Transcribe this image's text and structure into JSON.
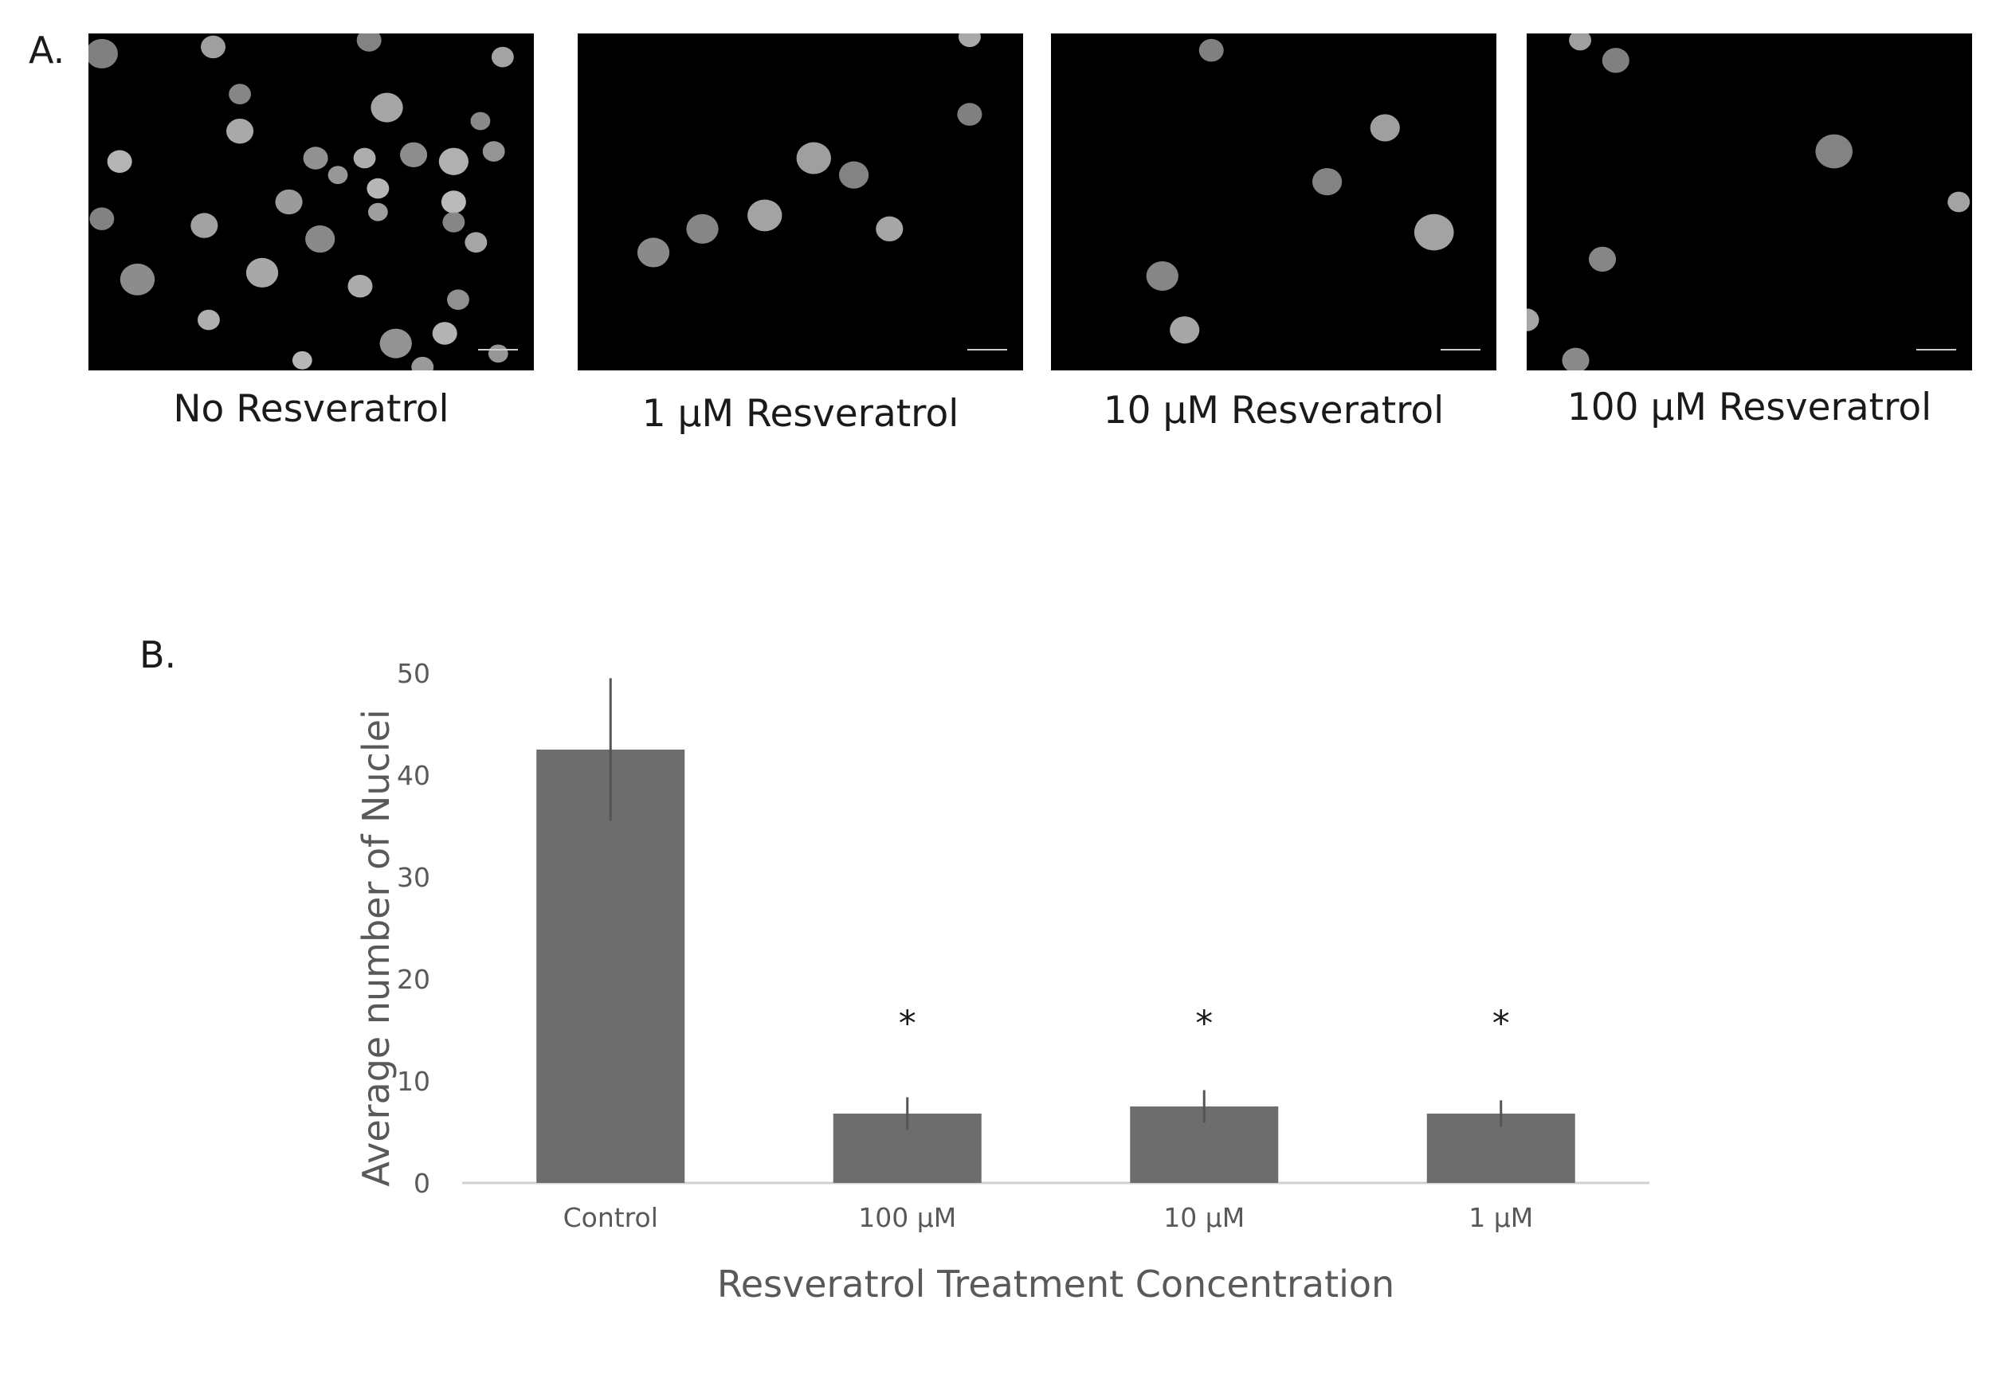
{
  "panel_a": {
    "letter": "A.",
    "images": [
      {
        "label": "No Resveratrol",
        "nuclei": [
          [
            0.03,
            0.06,
            13
          ],
          [
            0.28,
            0.04,
            10
          ],
          [
            0.63,
            0.02,
            10
          ],
          [
            0.93,
            0.07,
            9
          ],
          [
            0.34,
            0.18,
            9
          ],
          [
            0.67,
            0.22,
            13
          ],
          [
            0.88,
            0.26,
            8
          ],
          [
            0.34,
            0.29,
            11
          ],
          [
            0.73,
            0.36,
            11
          ],
          [
            0.62,
            0.37,
            9
          ],
          [
            0.51,
            0.37,
            10
          ],
          [
            0.82,
            0.38,
            12
          ],
          [
            0.91,
            0.35,
            9
          ],
          [
            0.07,
            0.38,
            10
          ],
          [
            0.56,
            0.42,
            8
          ],
          [
            0.65,
            0.46,
            9
          ],
          [
            0.45,
            0.5,
            11
          ],
          [
            0.82,
            0.5,
            10
          ],
          [
            0.65,
            0.53,
            8
          ],
          [
            0.03,
            0.55,
            10
          ],
          [
            0.26,
            0.57,
            11
          ],
          [
            0.82,
            0.56,
            9
          ],
          [
            0.87,
            0.62,
            9
          ],
          [
            0.52,
            0.61,
            12
          ],
          [
            0.39,
            0.71,
            13
          ],
          [
            0.11,
            0.73,
            14
          ],
          [
            0.61,
            0.75,
            10
          ],
          [
            0.83,
            0.79,
            9
          ],
          [
            0.27,
            0.85,
            9
          ],
          [
            0.69,
            0.92,
            13
          ],
          [
            0.8,
            0.89,
            10
          ],
          [
            0.92,
            0.95,
            8
          ],
          [
            0.48,
            0.97,
            8
          ],
          [
            0.75,
            0.99,
            9
          ]
        ]
      },
      {
        "label": "1 µM Resveratrol",
        "nuclei": [
          [
            0.88,
            0.24,
            10
          ],
          [
            0.53,
            0.37,
            14
          ],
          [
            0.62,
            0.42,
            12
          ],
          [
            0.42,
            0.54,
            14
          ],
          [
            0.28,
            0.58,
            13
          ],
          [
            0.7,
            0.58,
            11
          ],
          [
            0.17,
            0.65,
            13
          ],
          [
            0.88,
            0.01,
            9
          ]
        ]
      },
      {
        "label": "10 µM Resveratrol",
        "nuclei": [
          [
            0.36,
            0.05,
            10
          ],
          [
            0.75,
            0.28,
            12
          ],
          [
            0.62,
            0.44,
            12
          ],
          [
            0.86,
            0.59,
            16
          ],
          [
            0.25,
            0.72,
            13
          ],
          [
            0.3,
            0.88,
            12
          ]
        ]
      },
      {
        "label": "100 µM Resveratrol",
        "nuclei": [
          [
            0.2,
            0.08,
            11
          ],
          [
            0.12,
            0.02,
            9
          ],
          [
            0.69,
            0.35,
            15
          ],
          [
            0.97,
            0.5,
            9
          ],
          [
            0.17,
            0.67,
            11
          ],
          [
            0.0,
            0.85,
            10
          ],
          [
            0.11,
            0.97,
            11
          ]
        ]
      }
    ]
  },
  "panel_b": {
    "letter": "B."
  },
  "chart_data": {
    "type": "bar",
    "title": "",
    "categories": [
      "Control",
      "100 µM",
      "10 µM",
      "1 µM"
    ],
    "values": [
      42.5,
      6.8,
      7.5,
      6.8
    ],
    "error": [
      7.0,
      1.6,
      1.6,
      1.3
    ],
    "significance": [
      "",
      "*",
      "*",
      "*"
    ],
    "xlabel": "Resveratrol Treatment Concentration",
    "ylabel": "Average number of Nuclei",
    "ylim": [
      0,
      50
    ],
    "yticks": [
      0,
      10,
      20,
      30,
      40,
      50
    ],
    "grid": false,
    "legend": "none",
    "bar_color": "#6d6d6d",
    "error_bar_color": "#555555"
  }
}
